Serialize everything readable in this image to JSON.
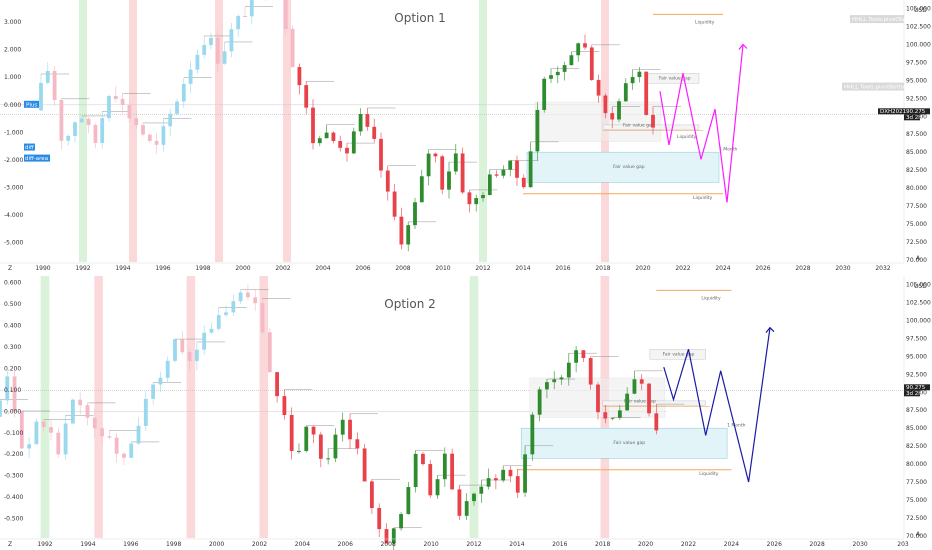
{
  "chart_data": [
    {
      "type": "candlestick",
      "title": "Option 1",
      "symbol": "DXH2021",
      "price": "90.275",
      "countdown": "3d 2h",
      "currency": "USD",
      "x_ticks": [
        "1990",
        "1992",
        "1994",
        "1996",
        "1998",
        "2000",
        "2002",
        "2004",
        "2006",
        "2008",
        "2010",
        "2012",
        "2014",
        "2016",
        "2018",
        "2020",
        "2022",
        "2024",
        "2026",
        "2028",
        "2030",
        "2032"
      ],
      "osc_ticks": [
        "3.000",
        "2.000",
        "1.000",
        "0.000",
        "-1.000",
        "-2.000",
        "-3.000",
        "-4.000",
        "-5.000"
      ],
      "price_ticks": [
        "105.000",
        "102.500",
        "100.000",
        "97.500",
        "95.000",
        "92.500",
        "90.000",
        "87.500",
        "85.000",
        "82.500",
        "80.000",
        "77.500",
        "75.000",
        "72.500",
        "70.000"
      ],
      "osc_range": [
        -5.7,
        3.8
      ],
      "price_range": [
        69.7,
        106.2
      ],
      "labels": {
        "liquidity_top": "Liquidity",
        "liquidity_mid": "Liquidity",
        "liquidity_bottom": "Liquidity",
        "fvg_small": "Fair value gap",
        "fvg_mid": "Fair value gap",
        "fvg_large": "Fair value gap",
        "month": "1 Month",
        "pivot_top": "HHLL Tools:pivotTop",
        "pivot_bottom": "HHLL Tools:pivotBottom",
        "plus_tag": "Plus",
        "diff_tag": "diff",
        "diff_area_tag": "diff-area",
        "z_label": "Z",
        "a_label": "A"
      },
      "projection_color": "#ff1aff",
      "projection_path": [
        [
          2020.85,
          93.5
        ],
        [
          2021.3,
          86
        ],
        [
          2022.0,
          96
        ],
        [
          2022.9,
          84
        ],
        [
          2023.6,
          91
        ],
        [
          2024.2,
          78
        ],
        [
          2025.0,
          100
        ]
      ]
    },
    {
      "type": "candlestick",
      "title": "Option 2",
      "symbol": "",
      "price": "90.275",
      "countdown": "3d 2h",
      "currency": "USD",
      "x_ticks": [
        "1992",
        "1994",
        "1996",
        "1998",
        "2000",
        "2002",
        "2004",
        "2006",
        "2008",
        "2010",
        "2012",
        "2014",
        "2016",
        "2018",
        "2020",
        "2022",
        "2024",
        "2026",
        "2028",
        "2030",
        "203"
      ],
      "osc_ticks": [
        "0.600",
        "0.500",
        "0.400",
        "0.300",
        "0.200",
        "0.100",
        "0.000",
        "-0.100",
        "-0.200",
        "-0.300",
        "-0.400",
        "-0.500"
      ],
      "price_ticks": [
        "105.000",
        "102.500",
        "100.000",
        "97.500",
        "95.000",
        "92.500",
        "90.000",
        "87.500",
        "85.000",
        "82.500",
        "80.000",
        "77.500",
        "75.000",
        "72.500",
        "70.000"
      ],
      "osc_range": [
        -0.59,
        0.63
      ],
      "price_range": [
        69.7,
        106.2
      ],
      "labels": {
        "liquidity_top": "Liquidity",
        "liquidity_bottom": "Liquidity",
        "fvg_small": "Fair value gap",
        "fvg_mid": "Fair value gap",
        "fvg_large": "Fair value gap",
        "month": "1 Month",
        "z_label": "Z",
        "a_label": "A"
      },
      "projection_color": "#1a1aa6",
      "projection_path": [
        [
          2020.85,
          93.5
        ],
        [
          2021.3,
          89
        ],
        [
          2022.0,
          96
        ],
        [
          2022.8,
          84
        ],
        [
          2023.5,
          93
        ],
        [
          2024.8,
          77.5
        ],
        [
          2025.8,
          99
        ]
      ]
    }
  ],
  "colors": {
    "up": "#2e8b2e",
    "down": "#e8414a",
    "up_light": "#9ad8ee",
    "down_light": "#f4b9c5",
    "green_band": "#cdeccd",
    "red_band": "#f9cccf",
    "liquidity_line": "#f2a95b"
  }
}
